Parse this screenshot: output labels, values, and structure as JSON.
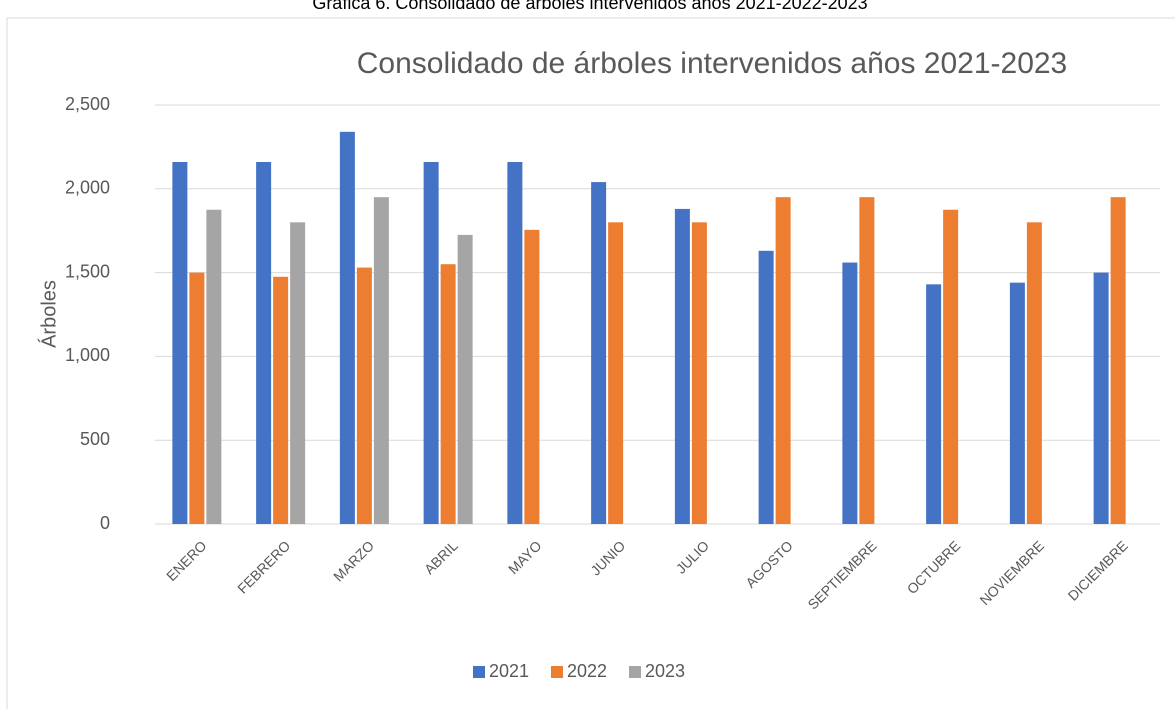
{
  "chart_data": {
    "type": "bar",
    "caption": "Gráfica 6. Consolidado de árboles intervenidos años 2021-2022-2023",
    "title": "Consolidado de árboles intervenidos años 2021-2023",
    "y_label": "Árboles",
    "categories": [
      "ENERO",
      "FEBRERO",
      "MARZO",
      "ABRIL",
      "MAYO",
      "JUNIO",
      "JULIO",
      "AGOSTO",
      "SEPTIEMBRE",
      "OCTUBRE",
      "NOVIEMBRE",
      "DICIEMBRE"
    ],
    "series": [
      {
        "name": "2021",
        "color": "#4472c4",
        "values": [
          2160,
          2160,
          2340,
          2160,
          2160,
          2040,
          1880,
          1630,
          1560,
          1430,
          1440,
          1500
        ]
      },
      {
        "name": "2022",
        "color": "#ed7d31",
        "values": [
          1500,
          1475,
          1530,
          1550,
          1755,
          1800,
          1800,
          1950,
          1950,
          1875,
          1800,
          1950
        ]
      },
      {
        "name": "2023",
        "color": "#a5a5a5",
        "values": [
          1875,
          1800,
          1950,
          1725,
          null,
          null,
          null,
          null,
          null,
          null,
          null,
          null
        ]
      }
    ],
    "ylim": [
      0,
      2500
    ],
    "yticks": [
      0,
      500,
      {
        "value": 1000,
        "label": "1,000"
      },
      {
        "value": 1500,
        "label": "1,500"
      },
      {
        "value": 2000,
        "label": "2,000"
      },
      {
        "value": 2500,
        "label": "2,500"
      }
    ],
    "grid": true,
    "legend": "bottom"
  }
}
